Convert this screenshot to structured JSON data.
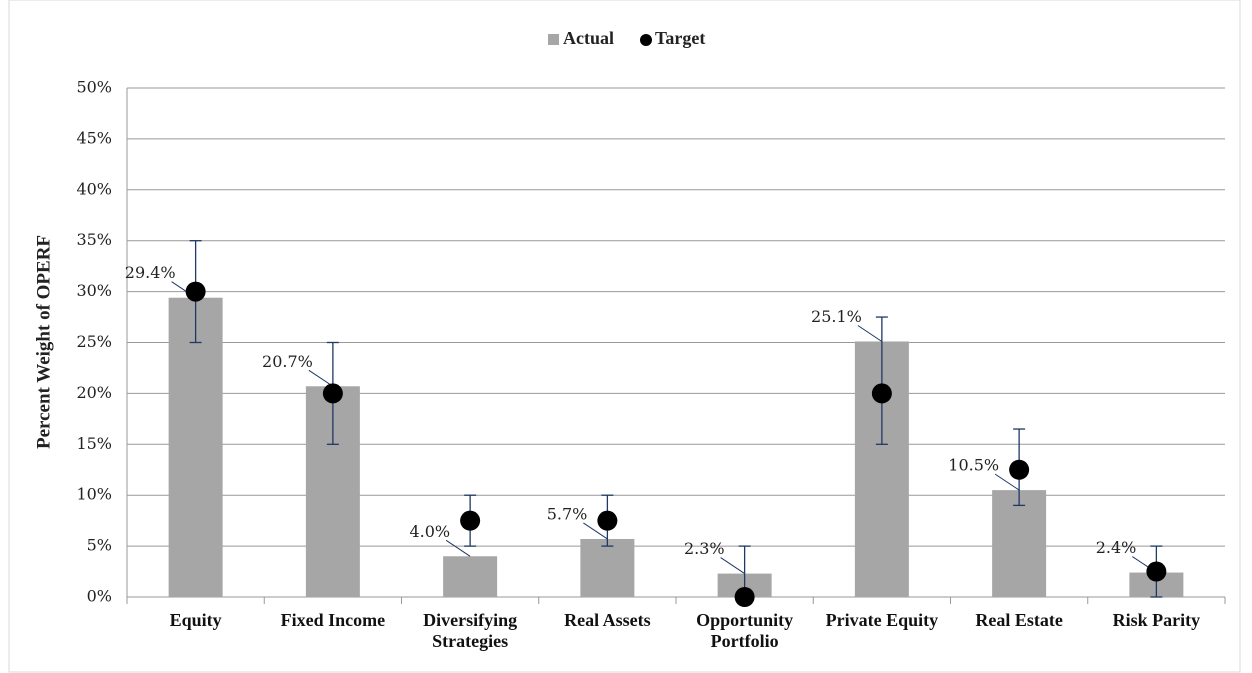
{
  "chart_data": {
    "type": "bar",
    "y_label": "Percent Weight of OPERF",
    "categories": [
      "Equity",
      "Fixed Income",
      "Diversifying Strategies",
      "Real Assets",
      "Opportunity Portfolio",
      "Private Equity",
      "Real Estate",
      "Risk Parity"
    ],
    "series": [
      {
        "name": "Actual",
        "color": "#a6a6a6",
        "values": [
          29.4,
          20.7,
          4.0,
          5.7,
          2.3,
          25.1,
          10.5,
          2.4
        ],
        "value_labels": [
          "29.4%",
          "20.7%",
          "4.0%",
          "5.7%",
          "2.3%",
          "25.1%",
          "10.5%",
          "2.4%"
        ]
      },
      {
        "name": "Target",
        "color": "#000000",
        "values": [
          30,
          20,
          7.5,
          7.5,
          0,
          20,
          12.5,
          2.5
        ],
        "range_low": [
          25,
          15,
          5,
          5,
          0,
          15,
          9,
          0
        ],
        "range_high": [
          35,
          25,
          10,
          10,
          5,
          27.5,
          16.5,
          5
        ],
        "error_color": "#1f3864"
      }
    ],
    "ylim": [
      0,
      50
    ],
    "yticks": [
      {
        "value": 0,
        "label": "0%"
      },
      {
        "value": 5,
        "label": "5%"
      },
      {
        "value": 10,
        "label": "10%"
      },
      {
        "value": 15,
        "label": "15%"
      },
      {
        "value": 20,
        "label": "20%"
      },
      {
        "value": 25,
        "label": "25%"
      },
      {
        "value": 30,
        "label": "30%"
      },
      {
        "value": 35,
        "label": "35%"
      },
      {
        "value": 40,
        "label": "40%"
      },
      {
        "value": 45,
        "label": "45%"
      },
      {
        "value": 50,
        "label": "50%"
      }
    ],
    "grid": true
  }
}
